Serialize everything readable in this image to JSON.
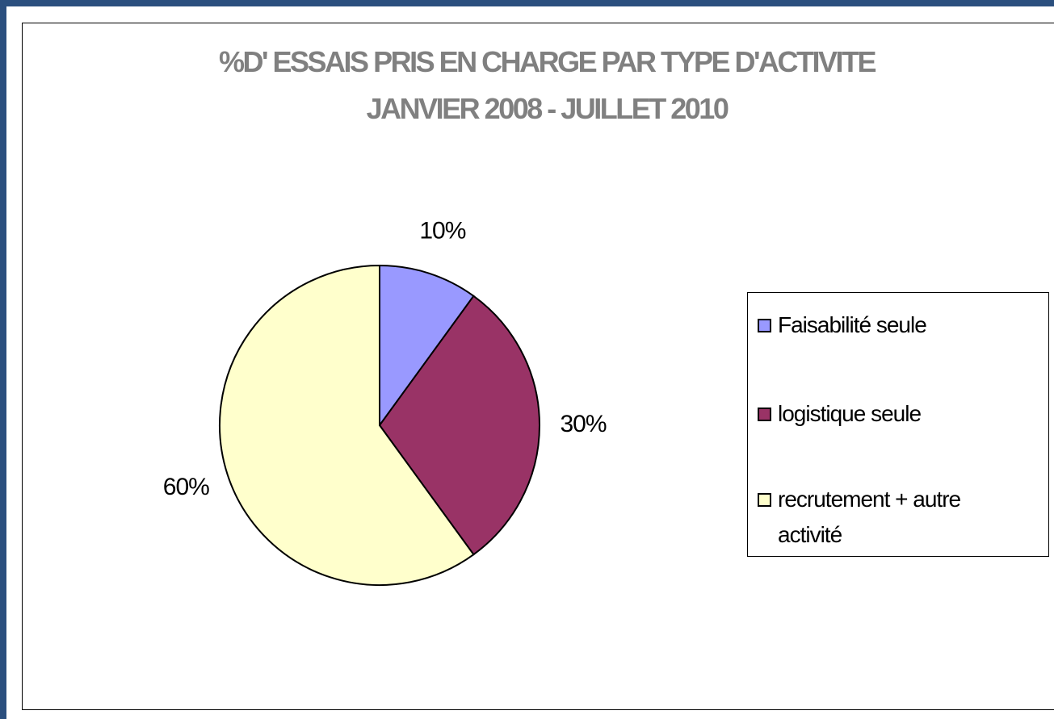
{
  "chart_data": {
    "type": "pie",
    "title": "%D' ESSAIS  PRIS EN CHARGE PAR TYPE D'ACTIVITE",
    "subtitle": "JANVIER 2008 - JUILLET 2010",
    "categories": [
      "Faisabilité seule",
      "logistique seule",
      "recrutement + autre activité"
    ],
    "values": [
      10,
      30,
      60
    ],
    "value_labels": [
      "10%",
      "30%",
      "60%"
    ],
    "colors": [
      "#9999ff",
      "#993366",
      "#ffffcc"
    ],
    "legend": "right"
  }
}
